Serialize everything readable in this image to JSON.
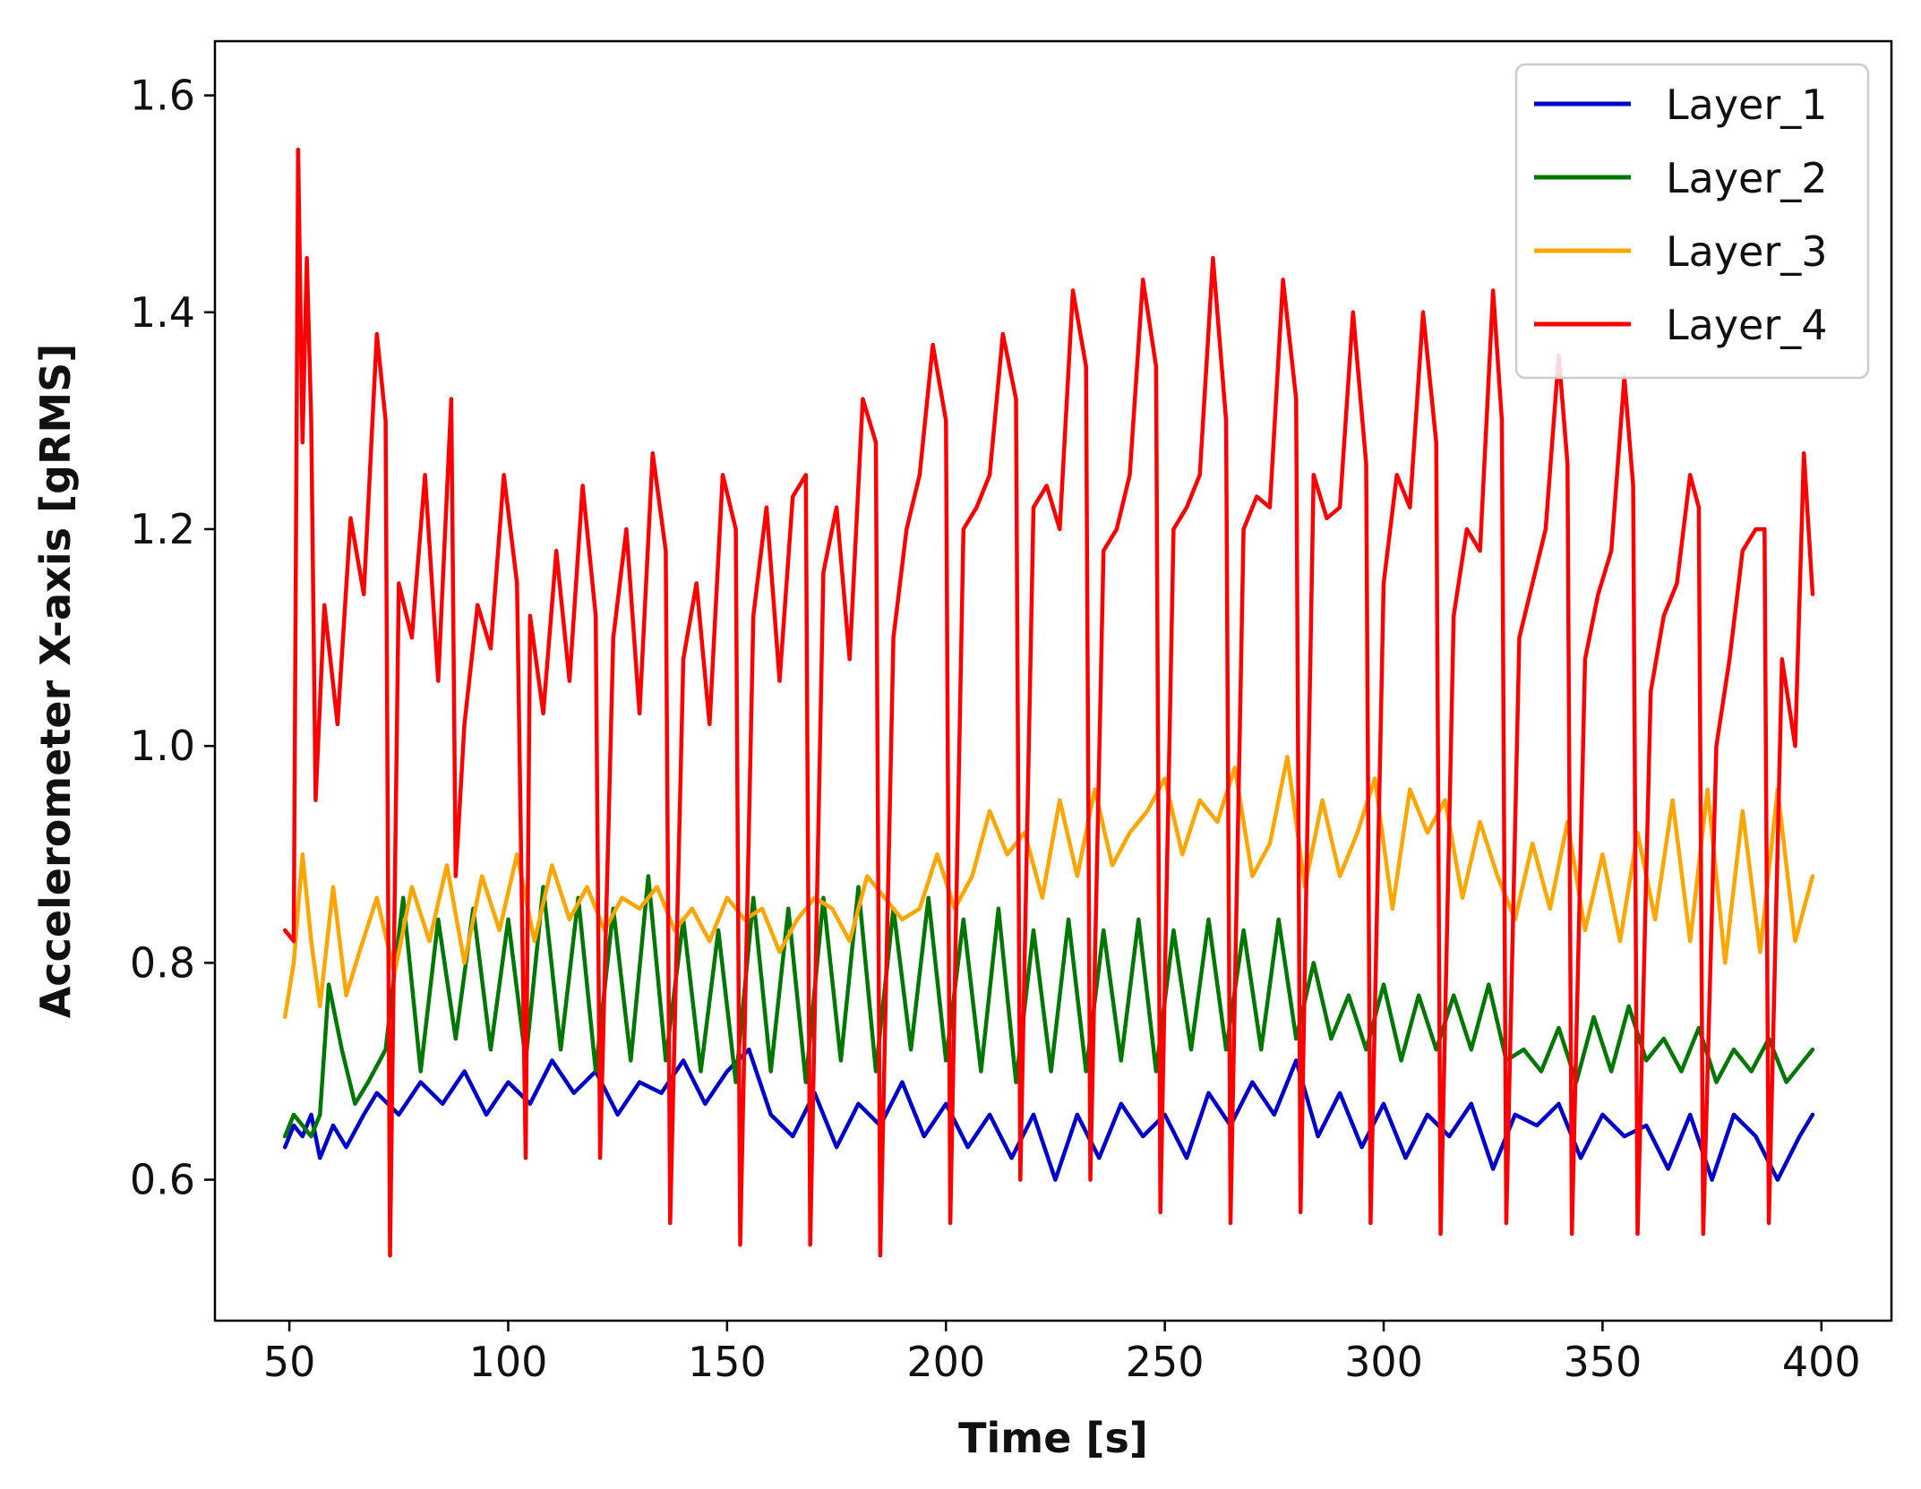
{
  "chart_data": {
    "type": "line",
    "title": "",
    "xlabel": "Time [s]",
    "ylabel": "Accelerometer X-axis [gRMS]",
    "xlim": [
      33,
      416
    ],
    "ylim": [
      0.47,
      1.65
    ],
    "xticks": [
      50,
      100,
      150,
      200,
      250,
      300,
      350,
      400
    ],
    "xtick_labels": [
      "50",
      "100",
      "150",
      "200",
      "250",
      "300",
      "350",
      "400"
    ],
    "yticks": [
      0.6,
      0.8,
      1.0,
      1.2,
      1.4,
      1.6
    ],
    "ytick_labels": [
      "0.6",
      "0.8",
      "1.0",
      "1.2",
      "1.4",
      "1.6"
    ],
    "grid": false,
    "legend_position": "top-right",
    "series": [
      {
        "name": "Layer_1",
        "color": "#0000cc",
        "x": [
          49,
          51,
          53,
          55,
          57,
          60,
          63,
          67,
          70,
          75,
          80,
          85,
          90,
          95,
          100,
          105,
          110,
          115,
          120,
          125,
          130,
          135,
          140,
          145,
          150,
          155,
          160,
          165,
          170,
          175,
          180,
          185,
          190,
          195,
          200,
          205,
          210,
          215,
          220,
          225,
          230,
          235,
          240,
          245,
          250,
          255,
          260,
          265,
          270,
          275,
          280,
          285,
          290,
          295,
          300,
          305,
          310,
          315,
          320,
          325,
          330,
          335,
          340,
          345,
          350,
          355,
          360,
          365,
          370,
          375,
          380,
          385,
          390,
          395,
          398
        ],
        "values": [
          0.63,
          0.65,
          0.64,
          0.66,
          0.62,
          0.65,
          0.63,
          0.66,
          0.68,
          0.66,
          0.69,
          0.67,
          0.7,
          0.66,
          0.69,
          0.67,
          0.71,
          0.68,
          0.7,
          0.66,
          0.69,
          0.68,
          0.71,
          0.67,
          0.7,
          0.72,
          0.66,
          0.64,
          0.68,
          0.63,
          0.67,
          0.65,
          0.69,
          0.64,
          0.67,
          0.63,
          0.66,
          0.62,
          0.66,
          0.6,
          0.66,
          0.62,
          0.67,
          0.64,
          0.66,
          0.62,
          0.68,
          0.65,
          0.69,
          0.66,
          0.71,
          0.64,
          0.68,
          0.63,
          0.67,
          0.62,
          0.66,
          0.64,
          0.67,
          0.61,
          0.66,
          0.65,
          0.67,
          0.62,
          0.66,
          0.64,
          0.65,
          0.61,
          0.66,
          0.6,
          0.66,
          0.64,
          0.6,
          0.64,
          0.66
        ]
      },
      {
        "name": "Layer_2",
        "color": "#007700",
        "x": [
          49,
          51,
          53,
          55,
          57,
          59,
          62,
          65,
          68,
          72,
          76,
          80,
          84,
          88,
          92,
          96,
          100,
          104,
          108,
          112,
          116,
          120,
          124,
          128,
          132,
          136,
          140,
          144,
          148,
          152,
          156,
          160,
          164,
          168,
          172,
          176,
          180,
          184,
          188,
          192,
          196,
          200,
          204,
          208,
          212,
          216,
          220,
          224,
          228,
          232,
          236,
          240,
          244,
          248,
          252,
          256,
          260,
          264,
          268,
          272,
          276,
          280,
          284,
          288,
          292,
          296,
          300,
          304,
          308,
          312,
          316,
          320,
          324,
          328,
          332,
          336,
          340,
          344,
          348,
          352,
          356,
          360,
          364,
          368,
          372,
          376,
          380,
          384,
          388,
          392,
          396,
          398
        ],
        "values": [
          0.64,
          0.66,
          0.65,
          0.64,
          0.66,
          0.78,
          0.72,
          0.67,
          0.69,
          0.72,
          0.86,
          0.7,
          0.84,
          0.73,
          0.85,
          0.72,
          0.84,
          0.71,
          0.87,
          0.72,
          0.86,
          0.7,
          0.85,
          0.71,
          0.88,
          0.71,
          0.84,
          0.7,
          0.83,
          0.69,
          0.86,
          0.7,
          0.85,
          0.69,
          0.86,
          0.71,
          0.87,
          0.7,
          0.85,
          0.72,
          0.86,
          0.71,
          0.84,
          0.7,
          0.85,
          0.69,
          0.83,
          0.7,
          0.84,
          0.7,
          0.83,
          0.71,
          0.84,
          0.7,
          0.83,
          0.72,
          0.84,
          0.72,
          0.83,
          0.72,
          0.84,
          0.73,
          0.8,
          0.73,
          0.77,
          0.72,
          0.78,
          0.71,
          0.77,
          0.72,
          0.77,
          0.72,
          0.78,
          0.71,
          0.72,
          0.7,
          0.74,
          0.69,
          0.75,
          0.7,
          0.76,
          0.71,
          0.73,
          0.7,
          0.74,
          0.69,
          0.72,
          0.7,
          0.73,
          0.69,
          0.71,
          0.72
        ]
      },
      {
        "name": "Layer_3",
        "color": "#ffa500",
        "x": [
          49,
          51,
          53,
          55,
          57,
          60,
          63,
          66,
          70,
          74,
          78,
          82,
          86,
          90,
          94,
          98,
          102,
          106,
          110,
          114,
          118,
          122,
          126,
          130,
          134,
          138,
          142,
          146,
          150,
          154,
          158,
          162,
          166,
          170,
          174,
          178,
          182,
          186,
          190,
          194,
          198,
          202,
          206,
          210,
          214,
          218,
          222,
          226,
          230,
          234,
          238,
          242,
          246,
          250,
          254,
          258,
          262,
          266,
          270,
          274,
          278,
          282,
          286,
          290,
          294,
          298,
          302,
          306,
          310,
          314,
          318,
          322,
          326,
          330,
          334,
          338,
          342,
          346,
          350,
          354,
          358,
          362,
          366,
          370,
          374,
          378,
          382,
          386,
          390,
          394,
          398
        ],
        "values": [
          0.75,
          0.8,
          0.9,
          0.82,
          0.76,
          0.87,
          0.77,
          0.81,
          0.86,
          0.79,
          0.87,
          0.82,
          0.89,
          0.8,
          0.88,
          0.83,
          0.9,
          0.82,
          0.89,
          0.84,
          0.87,
          0.83,
          0.86,
          0.85,
          0.87,
          0.83,
          0.85,
          0.82,
          0.86,
          0.84,
          0.85,
          0.81,
          0.84,
          0.86,
          0.85,
          0.82,
          0.88,
          0.86,
          0.84,
          0.85,
          0.9,
          0.85,
          0.88,
          0.94,
          0.9,
          0.92,
          0.86,
          0.95,
          0.88,
          0.96,
          0.89,
          0.92,
          0.94,
          0.97,
          0.9,
          0.95,
          0.93,
          0.98,
          0.88,
          0.91,
          0.99,
          0.87,
          0.95,
          0.88,
          0.92,
          0.97,
          0.85,
          0.96,
          0.92,
          0.95,
          0.86,
          0.93,
          0.88,
          0.84,
          0.91,
          0.85,
          0.93,
          0.83,
          0.9,
          0.82,
          0.92,
          0.84,
          0.95,
          0.82,
          0.96,
          0.8,
          0.94,
          0.81,
          0.96,
          0.82,
          0.88
        ]
      },
      {
        "name": "Layer_4",
        "color": "#ff0000",
        "x": [
          49,
          51,
          52,
          53,
          54,
          55,
          56,
          58,
          61,
          64,
          67,
          70,
          72,
          73,
          75,
          78,
          81,
          84,
          87,
          88,
          90,
          93,
          96,
          99,
          102,
          104,
          105,
          108,
          111,
          114,
          117,
          120,
          121,
          124,
          127,
          130,
          133,
          136,
          137,
          140,
          143,
          146,
          149,
          152,
          153,
          156,
          159,
          162,
          165,
          168,
          169,
          172,
          175,
          178,
          181,
          184,
          185,
          188,
          191,
          194,
          197,
          200,
          201,
          204,
          207,
          210,
          213,
          216,
          217,
          220,
          223,
          226,
          229,
          232,
          233,
          236,
          239,
          242,
          245,
          248,
          249,
          252,
          255,
          258,
          261,
          264,
          265,
          268,
          271,
          274,
          277,
          280,
          281,
          284,
          287,
          290,
          293,
          296,
          297,
          300,
          303,
          306,
          309,
          312,
          313,
          316,
          319,
          322,
          325,
          327,
          328,
          331,
          334,
          337,
          340,
          342,
          343,
          346,
          349,
          352,
          355,
          357,
          358,
          361,
          364,
          367,
          370,
          372,
          373,
          376,
          379,
          382,
          385,
          387,
          388,
          391,
          394,
          396,
          398
        ],
        "values": [
          0.83,
          0.82,
          1.55,
          1.28,
          1.45,
          1.3,
          0.95,
          1.13,
          1.02,
          1.21,
          1.14,
          1.38,
          1.3,
          0.53,
          1.15,
          1.1,
          1.25,
          1.06,
          1.32,
          0.88,
          1.02,
          1.13,
          1.09,
          1.25,
          1.15,
          0.62,
          1.12,
          1.03,
          1.18,
          1.06,
          1.24,
          1.12,
          0.62,
          1.1,
          1.2,
          1.03,
          1.27,
          1.18,
          0.56,
          1.08,
          1.15,
          1.02,
          1.25,
          1.2,
          0.54,
          1.12,
          1.22,
          1.06,
          1.23,
          1.25,
          0.54,
          1.16,
          1.22,
          1.08,
          1.32,
          1.28,
          0.53,
          1.1,
          1.2,
          1.25,
          1.37,
          1.3,
          0.56,
          1.2,
          1.22,
          1.25,
          1.38,
          1.32,
          0.6,
          1.22,
          1.24,
          1.2,
          1.42,
          1.35,
          0.6,
          1.18,
          1.2,
          1.25,
          1.43,
          1.35,
          0.57,
          1.2,
          1.22,
          1.25,
          1.45,
          1.3,
          0.56,
          1.2,
          1.23,
          1.22,
          1.43,
          1.32,
          0.57,
          1.25,
          1.21,
          1.22,
          1.4,
          1.26,
          0.56,
          1.15,
          1.25,
          1.22,
          1.4,
          1.28,
          0.55,
          1.12,
          1.2,
          1.18,
          1.42,
          1.3,
          0.56,
          1.1,
          1.15,
          1.2,
          1.36,
          1.26,
          0.55,
          1.08,
          1.14,
          1.18,
          1.34,
          1.24,
          0.55,
          1.05,
          1.12,
          1.15,
          1.25,
          1.22,
          0.55,
          1.0,
          1.08,
          1.18,
          1.2,
          1.2,
          0.56,
          1.08,
          1.0,
          1.27,
          1.14
        ]
      }
    ]
  }
}
